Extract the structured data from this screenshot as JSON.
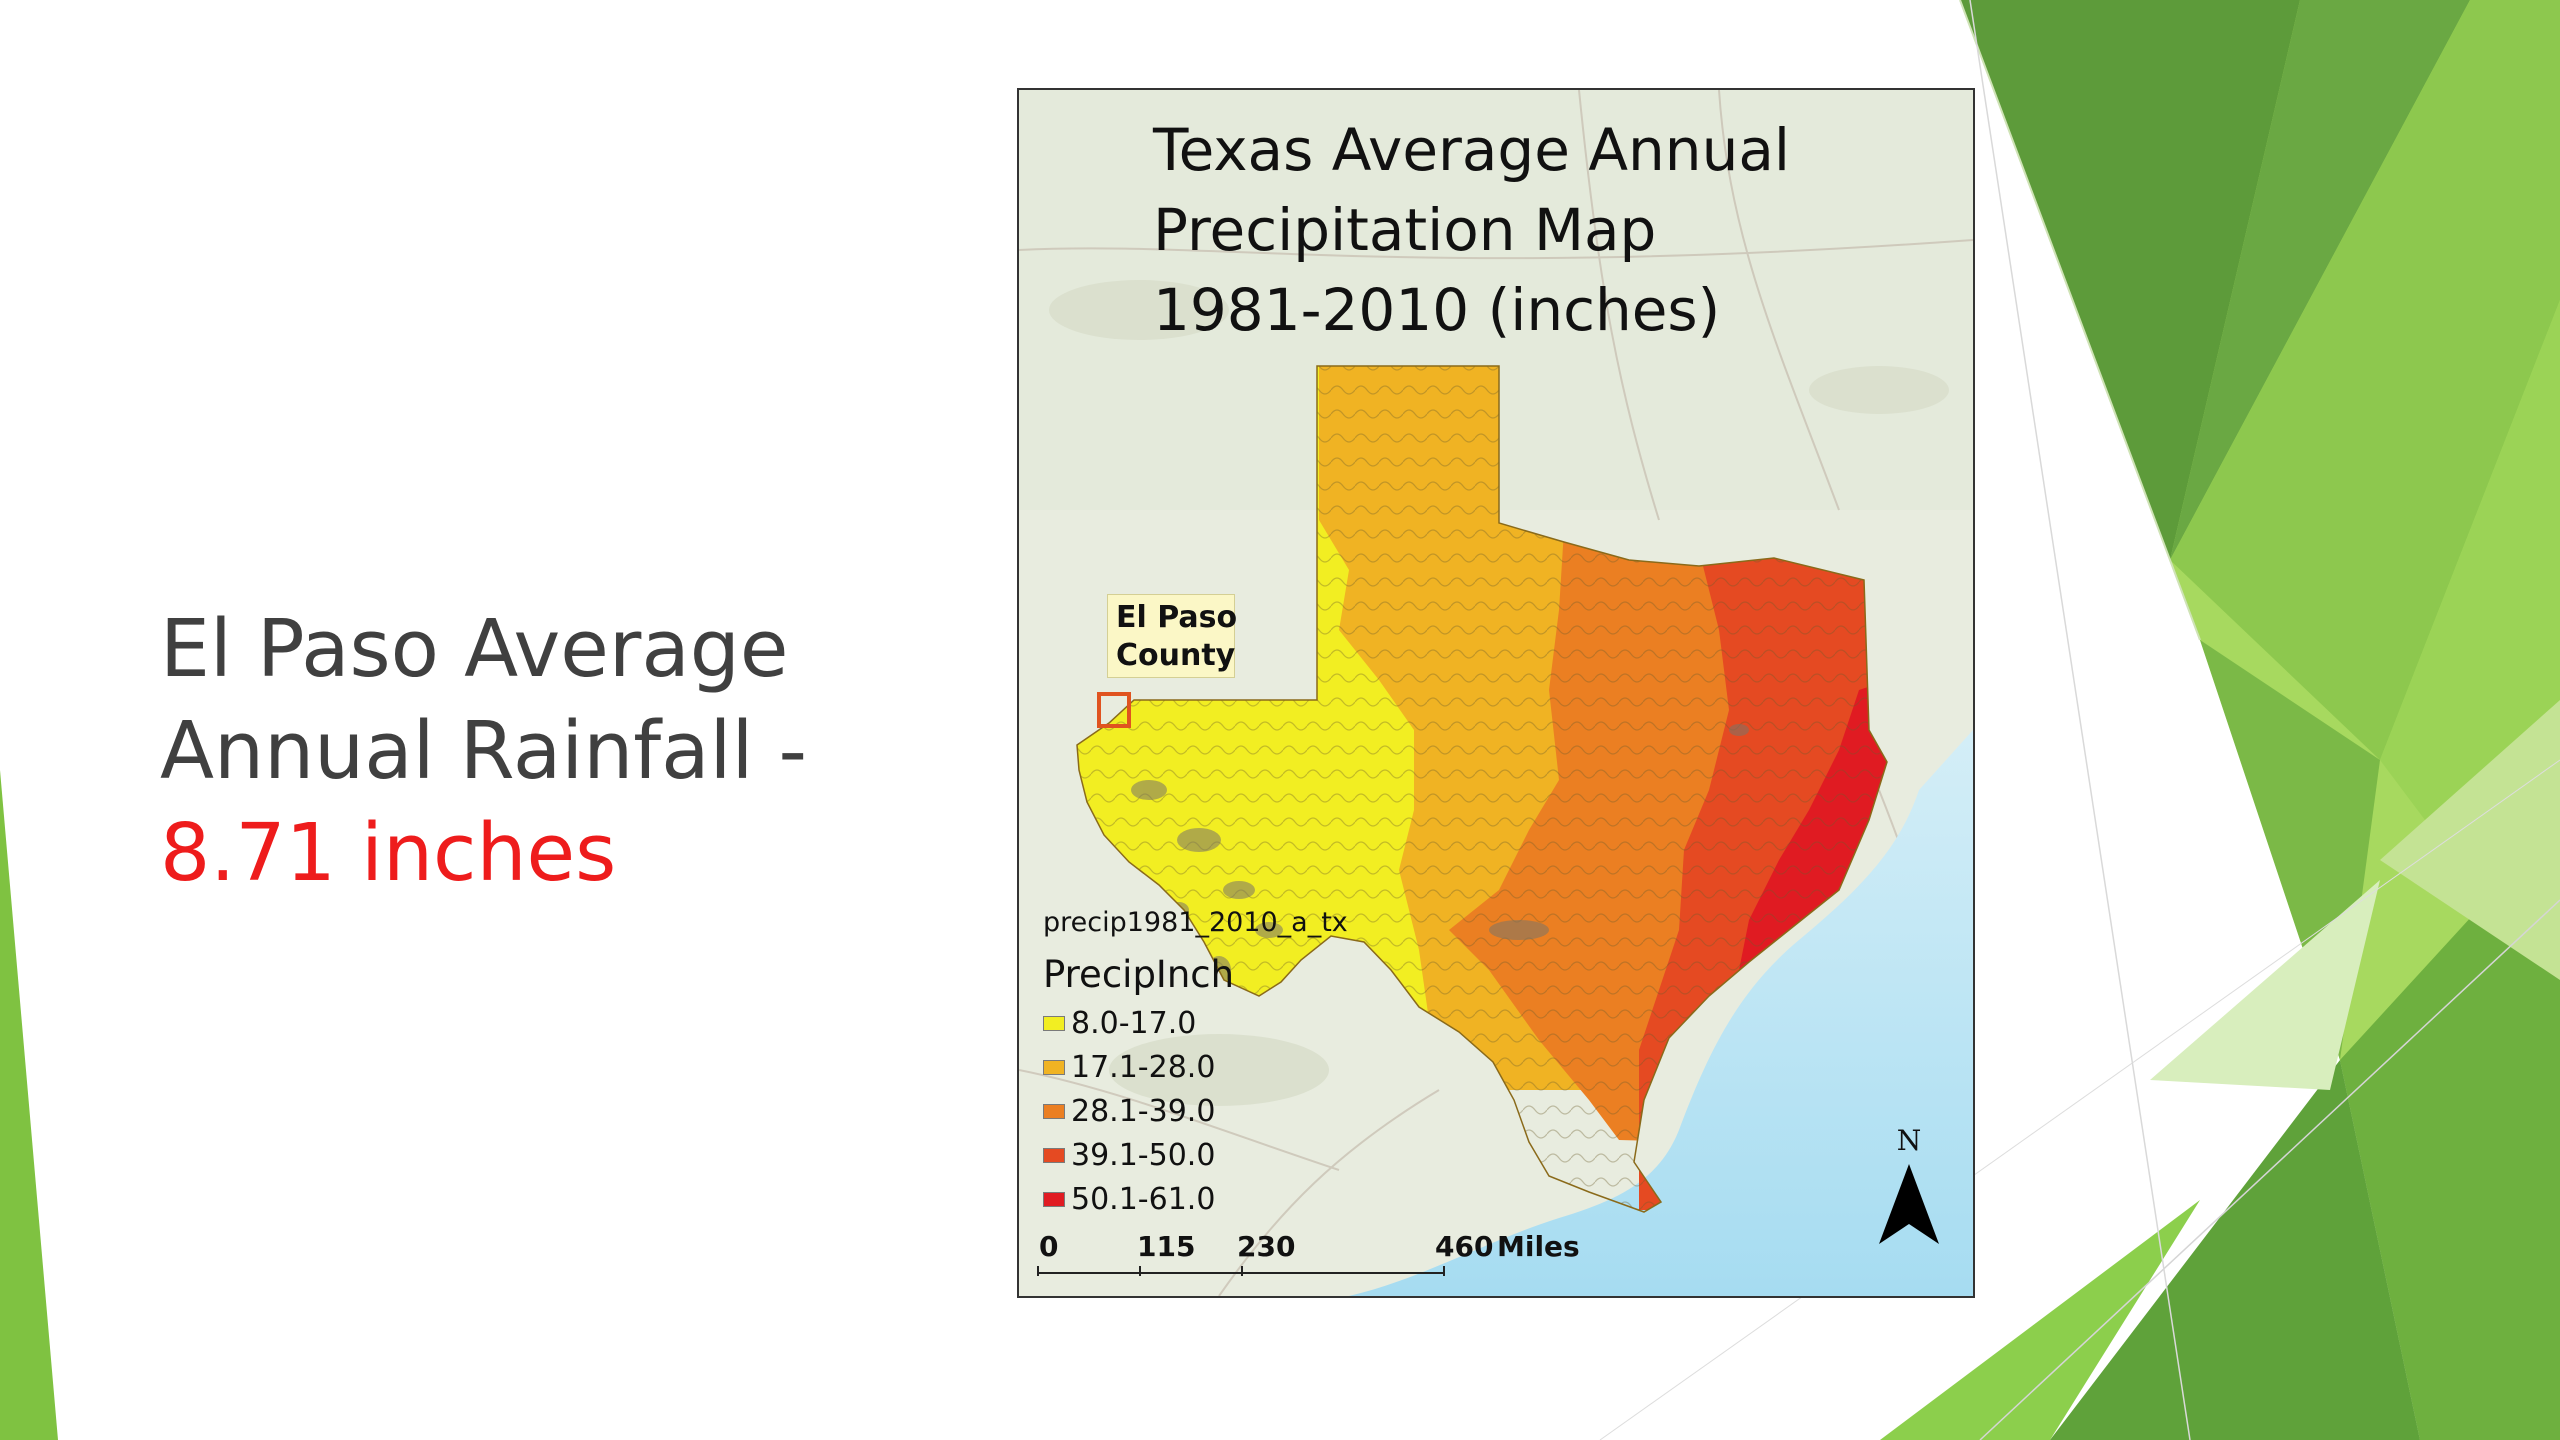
{
  "slide": {
    "headline": {
      "line1": "El Paso Average",
      "line2": "Annual Rainfall -",
      "value": "8.71 inches"
    }
  },
  "map": {
    "title": {
      "line1": "Texas Average Annual",
      "line2": "Precipitation Map",
      "line3": "1981-2010 (inches)"
    },
    "callout": {
      "line1": "El Paso",
      "line2": "County"
    },
    "legend": {
      "layer": "precip1981_2010_a_tx",
      "field": "PrecipInch",
      "classes": [
        {
          "label": "8.0-17.0",
          "color": "#f2ee22"
        },
        {
          "label": "17.1-28.0",
          "color": "#f0b323"
        },
        {
          "label": "28.1-39.0",
          "color": "#eb7f22"
        },
        {
          "label": "39.1-50.0",
          "color": "#e54a22"
        },
        {
          "label": "50.1-61.0",
          "color": "#e01b22"
        }
      ]
    },
    "scalebar": {
      "ticks": [
        "0",
        "115",
        "230",
        "460"
      ],
      "unit": "Miles"
    },
    "north": "N"
  }
}
